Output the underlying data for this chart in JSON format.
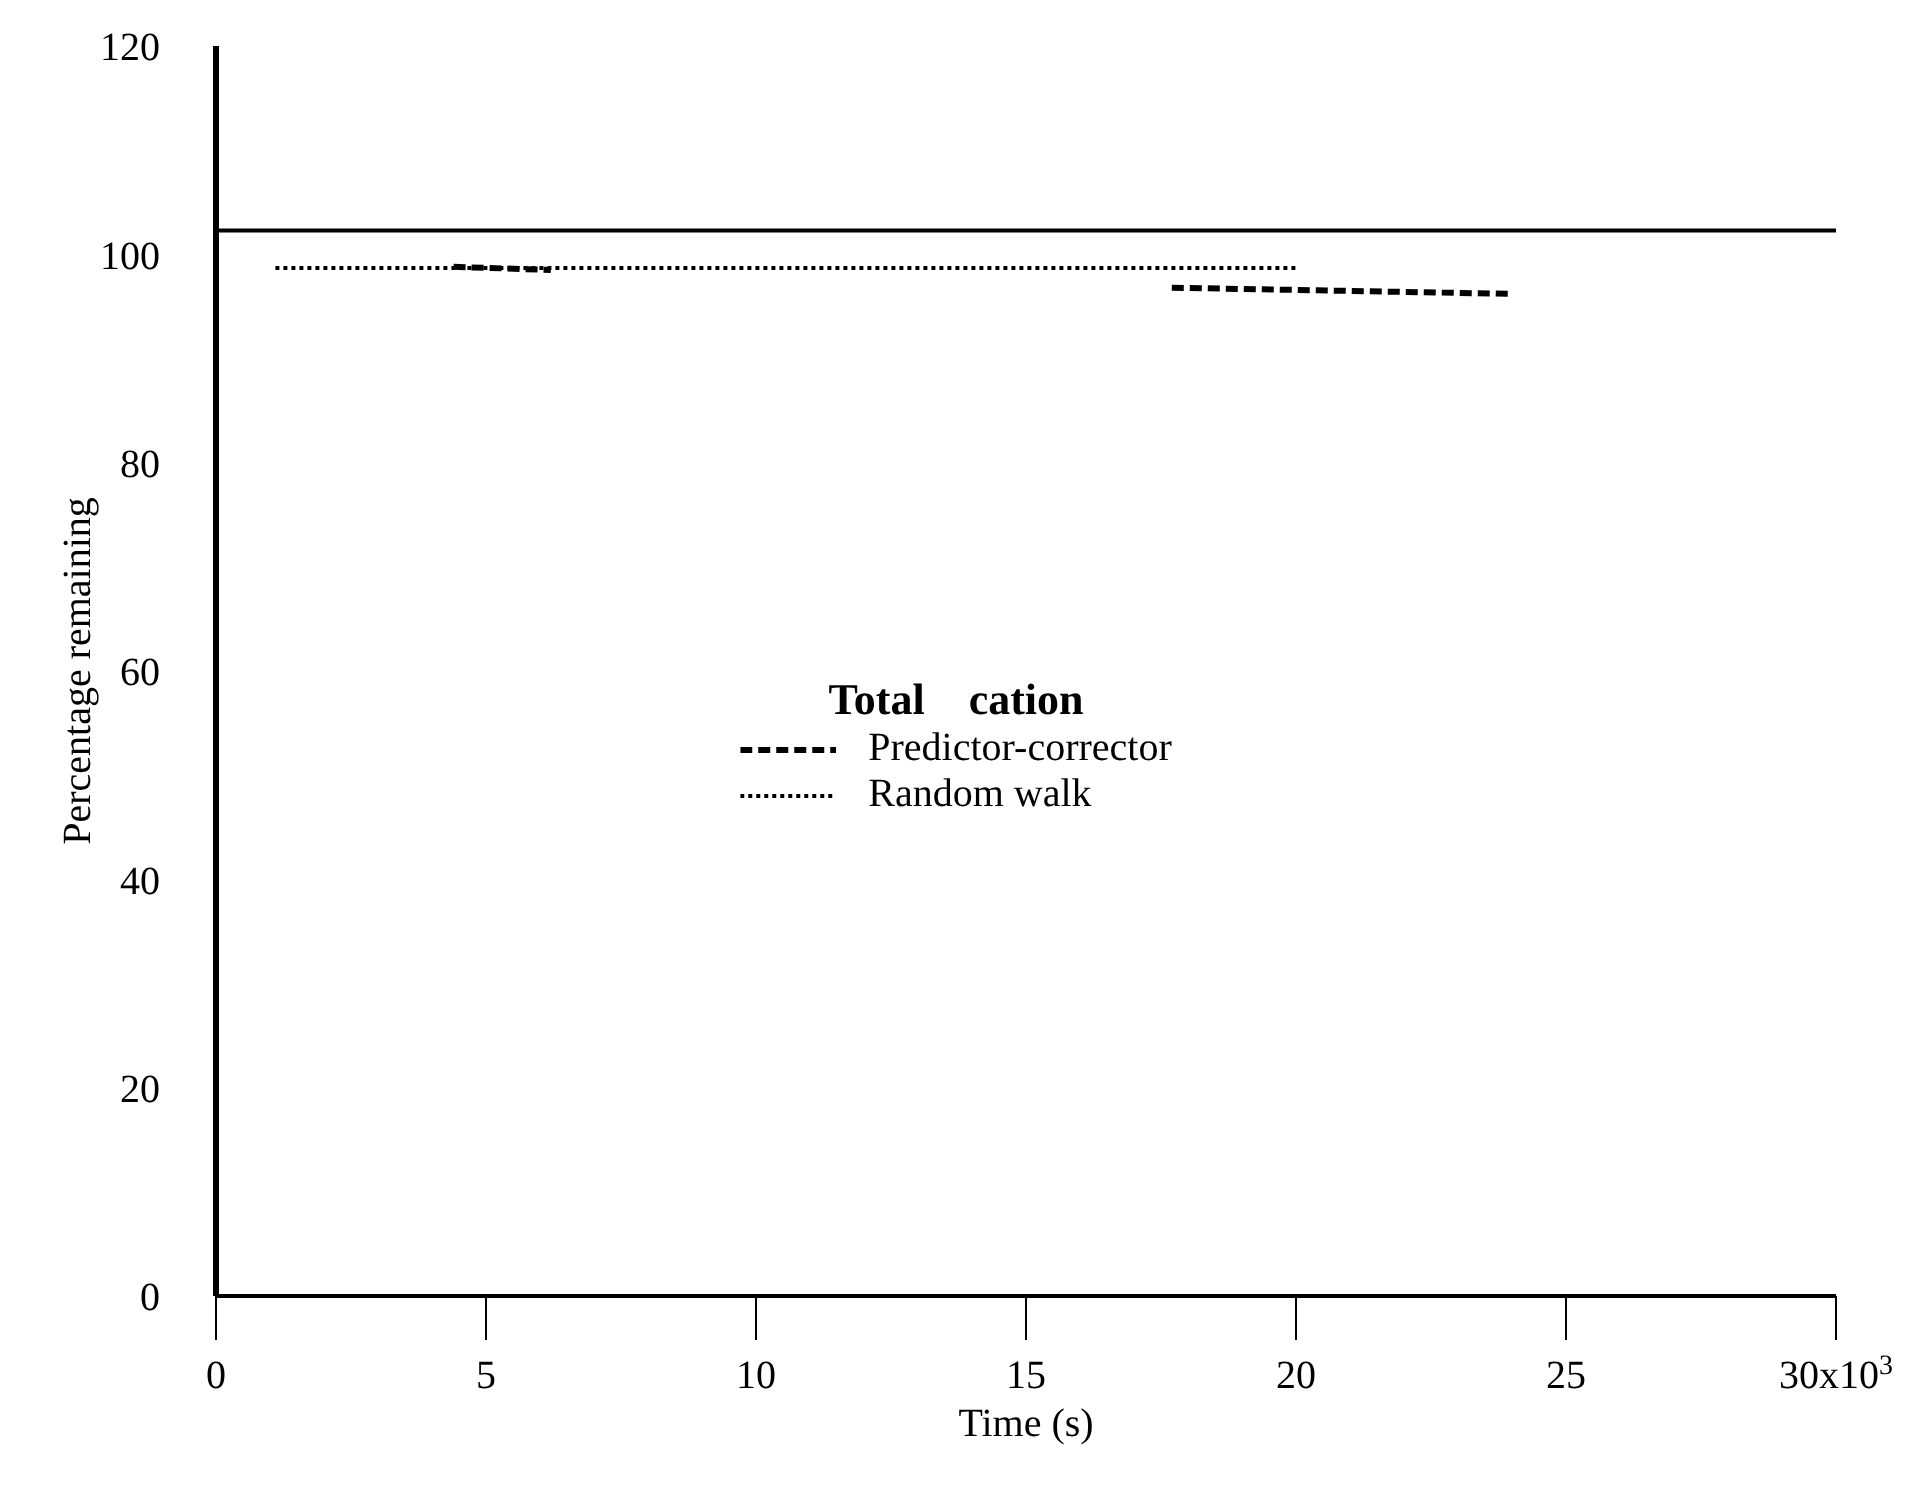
{
  "chart_data": {
    "type": "line",
    "xlabel": "Time  (s)",
    "ylabel": "Percentage remaining",
    "legend_title": "Total    cation",
    "legend": "center",
    "grid": false,
    "marker": "none",
    "xlim": [
      0,
      30
    ],
    "xticks": [
      0,
      5,
      10,
      15,
      20,
      25,
      30
    ],
    "annotations": [
      "x10$^{3}$"
    ],
    "ylim": [
      0,
      120
    ],
    "yticks": [
      0,
      20,
      40,
      60,
      80,
      100,
      120
    ],
    "ref_lines": [
      {
        "axis": "y",
        "value": 102.3,
        "color": "#000000",
        "line_style": "solid"
      }
    ],
    "series": [
      {
        "name": "Predictor-corrector",
        "color": "#000000",
        "line_style": "dashed",
        "x": [
          4.4,
          6.2,
          12,
          17.7,
          24
        ],
        "values": [
          98.8,
          98.5,
          null,
          96.8,
          96.2
        ]
      },
      {
        "name": "Random walk",
        "color": "#000000",
        "line_style": "dotted",
        "x": [
          1.1,
          20
        ],
        "values": [
          98.7,
          98.7
        ]
      }
    ]
  }
}
